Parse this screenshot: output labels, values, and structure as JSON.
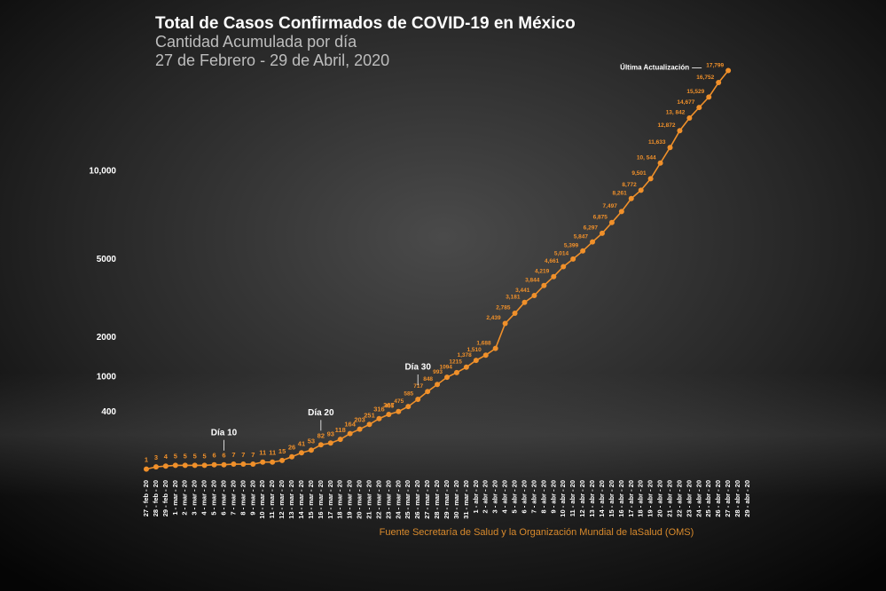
{
  "chart_data": {
    "type": "line",
    "title": "Total de Casos Confirmados de COVID-19 en México",
    "subtitle": "Cantidad Acumulada por día",
    "subtitle2": "27 de Febrero - 29 de Abril, 2020",
    "source": "Fuente Secretaría de Salud y la Organización Mundial de laSalud (OMS)",
    "y_scale": "sqrt",
    "ylim": [
      0,
      18000
    ],
    "yticks": [
      400,
      1000,
      2000,
      5000,
      {
        "value": 10000,
        "label": "10,000"
      }
    ],
    "categories": [
      "27 - feb - 20",
      "28 - feb - 20",
      "29 - feb - 20",
      "1 - mar - 20",
      "2 - mar - 20",
      "3 - mar - 20",
      "4 - mar - 20",
      "5 - mar - 20",
      "6 - mar - 20",
      "7 - mar - 20",
      "8 - mar - 20",
      "9 - mar - 20",
      "10 - mar - 20",
      "11 - mar - 20",
      "12 - mar - 20",
      "13 - mar - 20",
      "14 - mar - 20",
      "15 - mar - 20",
      "16 - mar - 20",
      "17 - mar - 20",
      "18 - mar - 20",
      "19 - mar - 20",
      "20 - mar - 20",
      "21 - mar - 20",
      "22 - mar - 20",
      "23 - mar - 20",
      "24 - mar - 20",
      "25 - mar - 20",
      "26 - mar - 20",
      "27 - mar - 20",
      "28 - mar - 20",
      "29 - mar - 20",
      "30 - mar - 20",
      "31 - mar - 20",
      "1 - abr - 20",
      "2 - abr - 20",
      "3 - abr - 20",
      "4 - abr - 20",
      "5 - abr - 20",
      "6 - abr - 20",
      "7 - abr - 20",
      "8 - abr - 20",
      "9 - abr - 20",
      "10 - abr - 20",
      "11 - abr - 20",
      "12 - abr - 20",
      "13 - abr - 20",
      "14 - abr - 20",
      "15 - abr - 20",
      "16 - abr - 20",
      "17 - abr - 20",
      "18 - abr - 20",
      "19 - abr - 20",
      "20 - abr - 20",
      "21 - abr - 20",
      "22 - abr - 20",
      "23 - abr - 20",
      "24 - abr - 20",
      "25 - abr - 20",
      "26 - abr - 20",
      "27 - abr - 20",
      "28 - abr - 20",
      "29 - abr - 20"
    ],
    "series": [
      {
        "name": "Casos confirmados",
        "color": "#f0902a",
        "values": [
          1,
          3,
          4,
          5,
          5,
          5,
          5,
          6,
          6,
          7,
          7,
          7,
          11,
          11,
          15,
          26,
          41,
          53,
          82,
          93,
          118,
          164,
          203,
          251,
          316,
          367,
          405,
          475,
          585,
          717,
          848,
          993,
          1094,
          1215,
          1378,
          1510,
          1688,
          2439,
          2785,
          3181,
          3441,
          3844,
          4219,
          4661,
          5014,
          5399,
          5847,
          6297,
          6875,
          7497,
          8261,
          8772,
          9501,
          10544,
          11633,
          12872,
          13842,
          14677,
          15529,
          16752,
          17799,
          null,
          null
        ],
        "value_labels": [
          "1",
          "3",
          "4",
          "5",
          "5",
          "5",
          "5",
          "6",
          "6",
          "7",
          "7",
          "7",
          "11",
          "11",
          "15",
          "26",
          "41",
          "53",
          "82",
          "93",
          "118",
          "164",
          "203",
          "251",
          "316",
          "367",
          "405",
          "475",
          "585",
          "717",
          "848",
          "993",
          "1094",
          "1215",
          "1,378",
          "1,510",
          "1,688",
          "2,439",
          "2,785",
          "3,181",
          "3,441",
          "3,844",
          "4,219",
          "4,661",
          "5,014",
          "5,399",
          "5,847",
          "6,297",
          "6,875",
          "7,497",
          "8,261",
          "8,772",
          "9,501",
          "10, 544",
          "11,633",
          "12,872",
          "13, 842",
          "14,677",
          "15,529",
          "16,752",
          "17,799",
          null,
          null
        ]
      }
    ],
    "annotations": [
      {
        "text": "Día 10",
        "category": "6 - mar - 20"
      },
      {
        "text": "Día 20",
        "category": "16 - mar - 20"
      },
      {
        "text": "Día 30",
        "category": "26 - mar - 20"
      },
      {
        "text": "Última Actualización",
        "category": "27 - abr - 20"
      }
    ]
  }
}
